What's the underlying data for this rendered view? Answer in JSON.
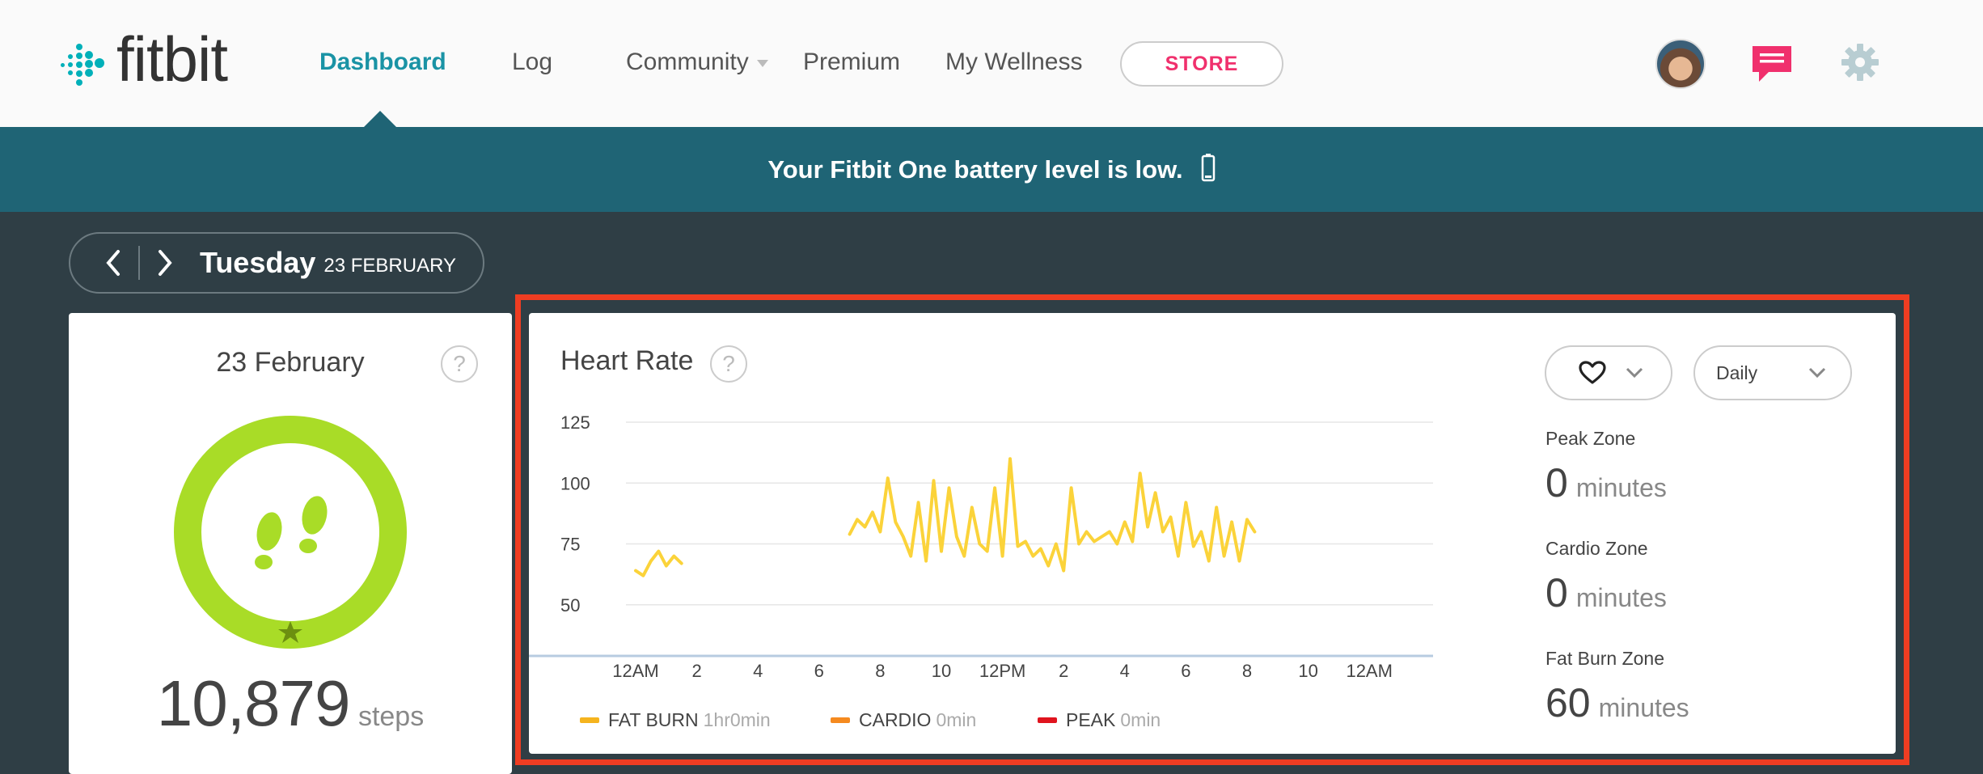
{
  "brand": {
    "name": "fitbit",
    "accent": "#00b0b9"
  },
  "nav": {
    "items": [
      {
        "label": "Dashboard",
        "active": true
      },
      {
        "label": "Log"
      },
      {
        "label": "Community",
        "has_dropdown": true
      },
      {
        "label": "Premium"
      },
      {
        "label": "My Wellness"
      }
    ],
    "store_label": "STORE",
    "icons": [
      "avatar",
      "messages-icon",
      "settings-gear-icon"
    ]
  },
  "banner": {
    "text": "Your Fitbit One battery level is low.",
    "icon": "battery-low-icon"
  },
  "date_nav": {
    "day": "Tuesday",
    "date": "23 FEBRUARY"
  },
  "steps_card": {
    "title": "23 February",
    "help": "?",
    "steps": "10,879",
    "unit": "steps",
    "ring_color": "#a9dc27",
    "goal_reached": true
  },
  "heart_rate": {
    "title": "Heart Rate",
    "help": "?",
    "metric_select": {
      "icon": "heart-icon"
    },
    "period_select": {
      "label": "Daily"
    },
    "zones": [
      {
        "label": "Peak Zone",
        "value": "0",
        "unit": "minutes"
      },
      {
        "label": "Cardio Zone",
        "value": "0",
        "unit": "minutes"
      },
      {
        "label": "Fat Burn Zone",
        "value": "60",
        "unit": "minutes"
      }
    ],
    "legend": [
      {
        "name": "FAT BURN",
        "value": "1hr0min",
        "color": "#f5b41e"
      },
      {
        "name": "CARDIO",
        "value": "0min",
        "color": "#f58a1f"
      },
      {
        "name": "PEAK",
        "value": "0min",
        "color": "#e0141e"
      }
    ]
  },
  "chart_data": {
    "type": "line",
    "title": "Heart Rate",
    "xlabel": "",
    "ylabel": "",
    "x_ticks": [
      "12AM",
      "2",
      "4",
      "6",
      "8",
      "10",
      "12PM",
      "2",
      "4",
      "6",
      "8",
      "10",
      "12AM"
    ],
    "y_ticks": [
      50,
      75,
      100,
      125
    ],
    "ylim": [
      30,
      125
    ],
    "grid": true,
    "line_color": "#fbd33a",
    "series": [
      {
        "points_x_hours": [
          0.0,
          0.25,
          0.5,
          0.75,
          1.0,
          1.25,
          1.5
        ],
        "values": [
          64,
          62,
          68,
          72,
          66,
          70,
          67
        ]
      },
      {
        "points_x_hours": [
          7.0,
          7.25,
          7.5,
          7.75,
          8.0,
          8.25,
          8.5,
          8.75,
          9.0,
          9.25,
          9.5,
          9.75,
          10.0,
          10.25,
          10.5,
          10.75,
          11.0,
          11.25,
          11.5,
          11.75,
          12.0,
          12.25,
          12.5,
          12.75,
          13.0,
          13.25,
          13.5,
          13.75,
          14.0,
          14.25,
          14.5,
          14.75,
          15.0,
          15.25,
          15.5,
          15.75,
          16.0,
          16.25,
          16.5,
          16.75,
          17.0,
          17.25,
          17.5,
          17.75,
          18.0,
          18.25,
          18.5,
          18.75,
          19.0,
          19.25,
          19.5,
          19.75,
          20.0,
          20.25
        ],
        "values": [
          79,
          85,
          82,
          88,
          80,
          102,
          84,
          78,
          70,
          92,
          68,
          101,
          72,
          98,
          78,
          70,
          90,
          75,
          72,
          98,
          70,
          110,
          74,
          76,
          70,
          73,
          66,
          75,
          64,
          98,
          75,
          80,
          76,
          78,
          80,
          75,
          84,
          76,
          104,
          82,
          96,
          80,
          86,
          70,
          92,
          74,
          80,
          68,
          90,
          70,
          84,
          68,
          85,
          80
        ]
      }
    ]
  }
}
